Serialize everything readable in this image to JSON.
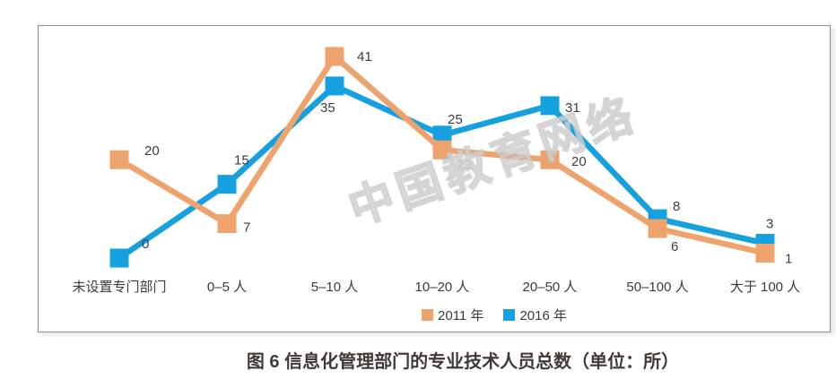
{
  "chart_data": {
    "type": "line",
    "title": "图 6  信息化管理部门的专业技术人员总数（单位：所）",
    "categories": [
      "未设置专门部门",
      "0–5 人",
      "5–10 人",
      "10–20 人",
      "20–50 人",
      "50–100 人",
      "大于 100 人"
    ],
    "series": [
      {
        "name": "2011 年",
        "color": "#EFA36C",
        "values": [
          20,
          7,
          41,
          22,
          20,
          6,
          1
        ],
        "label_colors": [
          null,
          null,
          null,
          "#8a8a8a",
          null,
          null,
          null
        ]
      },
      {
        "name": "2016 年",
        "color": "#15A0DF",
        "values": [
          0,
          15,
          35,
          25,
          31,
          8,
          3
        ],
        "label_colors": [
          null,
          null,
          null,
          null,
          null,
          null,
          null
        ]
      }
    ],
    "ylim": [
      0,
      47
    ],
    "grid": false,
    "legend_position": "bottom-center",
    "data_labels": true,
    "label_color": "#3d3d3d"
  },
  "watermark": {
    "text": "中国教育网络"
  }
}
